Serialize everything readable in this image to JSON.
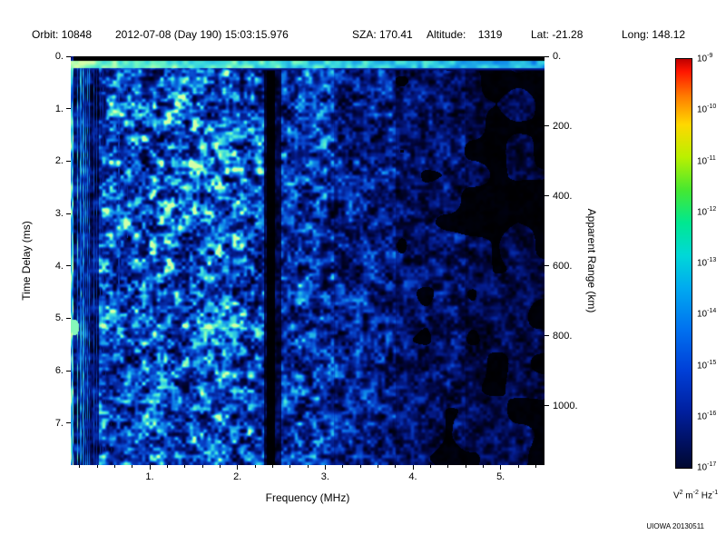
{
  "header": {
    "orbit": "Orbit: 10848",
    "datetime": "2012-07-08 (Day 190) 15:03:15.976",
    "sza": "SZA: 170.41",
    "altitude": "Altitude:    1319",
    "lat": "Lat: -21.28",
    "long": "Long: 148.12"
  },
  "chart_data": {
    "type": "heatmap",
    "description": "Radar sounder ionogram spectrogram: received spectral density versus sounding frequency and echo time delay",
    "xlabel": "Frequency (MHz)",
    "ylabel_left": "Time Delay (ms)",
    "ylabel_right": "Apparent Range (km)",
    "xlim": [
      0.1,
      5.5
    ],
    "ylim_ms": [
      0,
      7.8
    ],
    "ylim_km": [
      0,
      1170
    ],
    "x_ticks": {
      "values": [
        1,
        2,
        3,
        4,
        5
      ],
      "labels": [
        "1.",
        "2.",
        "3.",
        "4.",
        "5."
      ]
    },
    "x_minor_step": 0.2,
    "y_ticks_ms": {
      "values": [
        0,
        1,
        2,
        3,
        4,
        5,
        6,
        7
      ],
      "labels": [
        "0.",
        "1.",
        "2.",
        "3.",
        "4.",
        "5.",
        "6.",
        "7."
      ]
    },
    "y_ticks_km": {
      "values": [
        0,
        200,
        400,
        600,
        800,
        1000
      ],
      "labels": [
        "0.",
        "200.",
        "400.",
        "600.",
        "800.",
        "1000."
      ]
    },
    "colorbar": {
      "scale_base": "10",
      "exponents": [
        -9,
        -10,
        -11,
        -12,
        -13,
        -14,
        -15,
        -16,
        -17
      ],
      "unit": {
        "parts": [
          {
            "t": "V",
            "e": "2"
          },
          {
            "t": "m",
            "e": "-2"
          },
          {
            "t": "Hz",
            "e": "-1"
          }
        ]
      },
      "gradient": [
        {
          "p": 0.0,
          "c": "#bf0000"
        },
        {
          "p": 0.03,
          "c": "#ff1500"
        },
        {
          "p": 0.09,
          "c": "#ff7a00"
        },
        {
          "p": 0.16,
          "c": "#ffd800"
        },
        {
          "p": 0.24,
          "c": "#baf000"
        },
        {
          "p": 0.32,
          "c": "#46e830"
        },
        {
          "p": 0.4,
          "c": "#00e890"
        },
        {
          "p": 0.48,
          "c": "#00d8d8"
        },
        {
          "p": 0.56,
          "c": "#00aaf0"
        },
        {
          "p": 0.66,
          "c": "#0072f0"
        },
        {
          "p": 0.76,
          "c": "#0040d8"
        },
        {
          "p": 0.86,
          "c": "#0020a0"
        },
        {
          "p": 0.94,
          "c": "#001060"
        },
        {
          "p": 1.0,
          "c": "#000830"
        }
      ]
    },
    "features": {
      "surface_reflection_band_ms": 0.3,
      "plasma_harmonic_lines_below_mhz": 0.6,
      "interference_gap_mhz": [
        2.33,
        2.42
      ]
    },
    "spectrogram_palette": [
      "#000000",
      "#01053c",
      "#041c8c",
      "#0846cd",
      "#108ceb",
      "#37d7e1",
      "#73f8be",
      "#d2ffaa"
    ]
  },
  "footer": {
    "credit": "UIOWA 20130511"
  }
}
